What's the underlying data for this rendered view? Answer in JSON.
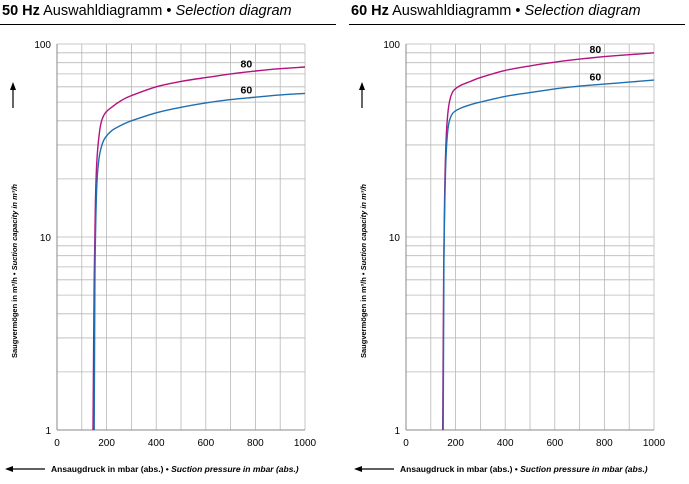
{
  "charts": [
    {
      "heading_bold": "50 Hz",
      "heading_de": " Auswahldiagramm • ",
      "heading_en": "Selection diagram"
    },
    {
      "heading_bold": "60 Hz",
      "heading_de": " Auswahldiagramm • ",
      "heading_en": "Selection diagram"
    }
  ],
  "axis_titles": {
    "y_de": "Saugvermögen in m³/h • ",
    "y_en": "Suction capacity in m³/h",
    "x_de": "Ansaugdruck in mbar (abs.) • ",
    "x_en": "Suction pressure in mbar (abs.)"
  },
  "colors": {
    "series_80": "#b5117f",
    "series_60": "#1f6fb0",
    "grid": "#b8b8b8"
  },
  "chart_data": [
    {
      "type": "line",
      "title": "50 Hz Auswahldiagramm • Selection diagram",
      "xlabel": "Ansaugdruck in mbar (abs.) • Suction pressure in mbar (abs.)",
      "ylabel": "Saugvermögen in m³/h • Suction capacity in m³/h",
      "xlim": [
        0,
        1000
      ],
      "ylim": [
        1,
        100
      ],
      "yscale": "log",
      "grid": true,
      "xticks": [
        "0",
        "200",
        "400",
        "600",
        "800",
        "1000"
      ],
      "yticks": [
        "1",
        "10",
        "100"
      ],
      "series": [
        {
          "name": "80",
          "color": "#b5117f",
          "points": [
            [
              145,
              1
            ],
            [
              150,
              6
            ],
            [
              155,
              15
            ],
            [
              160,
              24
            ],
            [
              170,
              34
            ],
            [
              180,
              40
            ],
            [
              195,
              44
            ],
            [
              220,
              47
            ],
            [
              260,
              51
            ],
            [
              300,
              54
            ],
            [
              400,
              60
            ],
            [
              500,
              64
            ],
            [
              600,
              67
            ],
            [
              700,
              70
            ],
            [
              800,
              72.5
            ],
            [
              900,
              74.5
            ],
            [
              1000,
              76
            ]
          ]
        },
        {
          "name": "60",
          "color": "#1f6fb0",
          "points": [
            [
              150,
              1
            ],
            [
              153,
              6
            ],
            [
              157,
              13
            ],
            [
              161,
              19
            ],
            [
              167,
              24
            ],
            [
              175,
              28
            ],
            [
              190,
              32
            ],
            [
              220,
              35.5
            ],
            [
              260,
              38
            ],
            [
              300,
              40
            ],
            [
              400,
              44
            ],
            [
              500,
              47
            ],
            [
              600,
              49.5
            ],
            [
              700,
              51.5
            ],
            [
              800,
              53
            ],
            [
              900,
              54.5
            ],
            [
              1000,
              55.5
            ]
          ]
        }
      ]
    },
    {
      "type": "line",
      "title": "60 Hz Auswahldiagramm • Selection diagram",
      "xlabel": "Ansaugdruck in mbar (abs.) • Suction pressure in mbar (abs.)",
      "ylabel": "Saugvermögen in m³/h • Suction capacity in m³/h",
      "xlim": [
        0,
        1000
      ],
      "ylim": [
        1,
        100
      ],
      "yscale": "log",
      "grid": true,
      "xticks": [
        "0",
        "200",
        "400",
        "600",
        "800",
        "1000"
      ],
      "yticks": [
        "1",
        "10",
        "100"
      ],
      "series": [
        {
          "name": "80",
          "color": "#b5117f",
          "points": [
            [
              148,
              1
            ],
            [
              152,
              7
            ],
            [
              156,
              17
            ],
            [
              160,
              28
            ],
            [
              166,
              40
            ],
            [
              175,
              50
            ],
            [
              190,
              57
            ],
            [
              220,
              61
            ],
            [
              260,
              64
            ],
            [
              300,
              67
            ],
            [
              400,
              73
            ],
            [
              500,
              77
            ],
            [
              600,
              80.5
            ],
            [
              700,
              83.5
            ],
            [
              800,
              86
            ],
            [
              900,
              88
            ],
            [
              1000,
              90
            ]
          ]
        },
        {
          "name": "60",
          "color": "#1f6fb0",
          "points": [
            [
              150,
              1
            ],
            [
              153,
              7
            ],
            [
              157,
              16
            ],
            [
              161,
              25
            ],
            [
              167,
              34
            ],
            [
              175,
              40
            ],
            [
              190,
              44
            ],
            [
              220,
              46.5
            ],
            [
              260,
              48.5
            ],
            [
              300,
              50
            ],
            [
              400,
              53.5
            ],
            [
              500,
              56
            ],
            [
              600,
              58.5
            ],
            [
              700,
              60.5
            ],
            [
              800,
              62
            ],
            [
              900,
              63.5
            ],
            [
              1000,
              65
            ]
          ]
        }
      ]
    }
  ]
}
